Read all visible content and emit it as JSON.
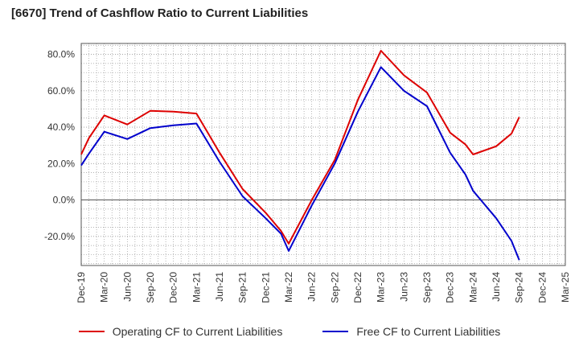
{
  "chart_data": {
    "type": "line",
    "title": "[6670]  Trend of Cashflow Ratio to Current Liabilities",
    "xlabel": "",
    "ylabel": "",
    "ylim": [
      -36,
      86
    ],
    "y_ticks": [
      -20,
      0,
      20,
      40,
      60,
      80
    ],
    "y_tick_labels": [
      "-20.0%",
      "0.0%",
      "20.0%",
      "40.0%",
      "60.0%",
      "80.0%"
    ],
    "x": [
      "Dec-19",
      "Mar-20",
      "Jun-20",
      "Sep-20",
      "Dec-20",
      "Mar-21",
      "Jun-21",
      "Sep-21",
      "Dec-21",
      "Mar-22",
      "Jun-22",
      "Sep-22",
      "Dec-22",
      "Mar-23",
      "Jun-23",
      "Sep-23",
      "Dec-23",
      "Mar-24",
      "Jun-24",
      "Sep-24",
      "Dec-24",
      "Mar-25"
    ],
    "x_tick_labels": [
      "Dec-19",
      "Mar-20",
      "Jun-20",
      "Sep-20",
      "Dec-20",
      "Mar-21",
      "Jun-21",
      "Sep-21",
      "Dec-21",
      "Mar-22",
      "Jun-22",
      "Sep-22",
      "Dec-22",
      "Mar-23",
      "Jun-23",
      "Sep-23",
      "Dec-23",
      "Mar-24",
      "Jun-24",
      "Sep-24",
      "Dec-24",
      "Mar-25"
    ],
    "grid": true,
    "legend_position": "bottom",
    "series": [
      {
        "name": "Operating CF to Current Liabilities",
        "color": "#dd0000",
        "points": [
          [
            "Dec-19",
            25
          ],
          [
            "Jan-20",
            34
          ],
          [
            "Mar-20",
            46.5
          ],
          [
            "Jun-20",
            41.5
          ],
          [
            "Sep-20",
            49
          ],
          [
            "Dec-20",
            48.5
          ],
          [
            "Mar-21",
            47.5
          ],
          [
            "Jun-21",
            26
          ],
          [
            "Sep-21",
            6
          ],
          [
            "Dec-21",
            -7
          ],
          [
            "Feb-22",
            -17
          ],
          [
            "Mar-22",
            -24
          ],
          [
            "Jun-22",
            0
          ],
          [
            "Sep-22",
            22
          ],
          [
            "Dec-22",
            55
          ],
          [
            "Mar-23",
            82
          ],
          [
            "Jun-23",
            68.5
          ],
          [
            "Sep-23",
            59
          ],
          [
            "Dec-23",
            37
          ],
          [
            "Feb-24",
            30.5
          ],
          [
            "Mar-24",
            25
          ],
          [
            "Jun-24",
            29.5
          ],
          [
            "Aug-24",
            36.5
          ],
          [
            "Sep-24",
            45.5
          ]
        ]
      },
      {
        "name": "Free CF to Current Liabilities",
        "color": "#0000cc",
        "points": [
          [
            "Dec-19",
            19
          ],
          [
            "Jan-20",
            25.5
          ],
          [
            "Mar-20",
            37.5
          ],
          [
            "Jun-20",
            33.5
          ],
          [
            "Sep-20",
            39.5
          ],
          [
            "Dec-20",
            41
          ],
          [
            "Mar-21",
            42
          ],
          [
            "Jun-21",
            21
          ],
          [
            "Sep-21",
            2
          ],
          [
            "Dec-21",
            -10
          ],
          [
            "Feb-22",
            -18.5
          ],
          [
            "Mar-22",
            -28
          ],
          [
            "Jun-22",
            -3
          ],
          [
            "Sep-22",
            20
          ],
          [
            "Dec-22",
            48.5
          ],
          [
            "Mar-23",
            73
          ],
          [
            "Jun-23",
            60
          ],
          [
            "Sep-23",
            51.5
          ],
          [
            "Dec-23",
            26
          ],
          [
            "Feb-24",
            14
          ],
          [
            "Mar-24",
            5
          ],
          [
            "Jun-24",
            -10
          ],
          [
            "Aug-24",
            -22.5
          ],
          [
            "Sep-24",
            -33
          ]
        ]
      }
    ]
  }
}
